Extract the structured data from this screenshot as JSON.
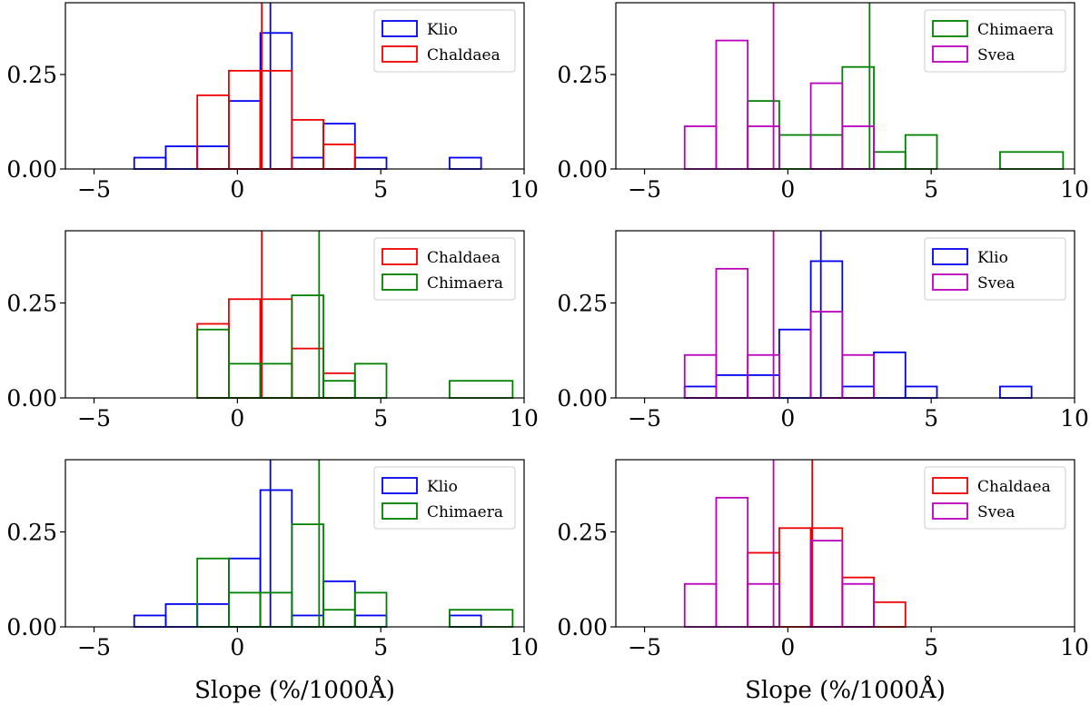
{
  "xlabel": "Slope (%/1000Å)",
  "colors": {
    "Klio": "#0000ee",
    "Chaldaea": "#ee0000",
    "Chimaera": "#008000",
    "Svea": "#bb00bb"
  },
  "hist": {
    "Klio": {
      "mean": 1.15,
      "edges": [
        -3.6,
        -2.5,
        -1.4,
        -0.3,
        0.8,
        1.9,
        3.0,
        4.1,
        5.2,
        6.3,
        7.4,
        8.5
      ],
      "values": [
        0.03,
        0.06,
        0.06,
        0.18,
        0.36,
        0.03,
        0.12,
        0.03,
        0.0,
        0.0,
        0.03
      ]
    },
    "Chaldaea": {
      "mean": 0.85,
      "edges": [
        -1.4,
        -0.3,
        0.8,
        1.9,
        3.0,
        4.1
      ],
      "values": [
        0.195,
        0.26,
        0.26,
        0.13,
        0.065
      ]
    },
    "Chimaera": {
      "mean": 2.85,
      "edges": [
        -1.4,
        -0.3,
        0.8,
        1.9,
        3.0,
        4.1,
        5.2,
        6.3,
        7.4,
        9.6
      ],
      "values": [
        0.18,
        0.09,
        0.09,
        0.27,
        0.045,
        0.09,
        0.0,
        0.0,
        0.045
      ]
    },
    "Svea": {
      "mean": -0.5,
      "edges": [
        -3.6,
        -2.5,
        -1.4,
        -0.3,
        0.8,
        1.9,
        3.0
      ],
      "values": [
        0.113,
        0.34,
        0.113,
        0.0,
        0.227,
        0.113
      ]
    }
  },
  "chart_data": [
    {
      "type": "bar",
      "subtype": "step-histogram",
      "series": [
        "Klio",
        "Chaldaea"
      ],
      "xlim": [
        -6,
        10
      ],
      "ylim": [
        0,
        0.44
      ],
      "xticks": [
        "−5",
        "0",
        "5",
        "10"
      ],
      "yticks": [
        "0.00",
        "0.25"
      ],
      "xlabel": "",
      "legend": "top-right"
    },
    {
      "type": "bar",
      "subtype": "step-histogram",
      "series": [
        "Chimaera",
        "Svea"
      ],
      "xlim": [
        -6,
        10
      ],
      "ylim": [
        0,
        0.44
      ],
      "xticks": [
        "−5",
        "0",
        "5",
        "10"
      ],
      "yticks": [
        "0.00",
        "0.25"
      ],
      "xlabel": "",
      "legend": "top-right"
    },
    {
      "type": "bar",
      "subtype": "step-histogram",
      "series": [
        "Chaldaea",
        "Chimaera"
      ],
      "xlim": [
        -6,
        10
      ],
      "ylim": [
        0,
        0.44
      ],
      "xticks": [
        "−5",
        "0",
        "5",
        "10"
      ],
      "yticks": [
        "0.00",
        "0.25"
      ],
      "xlabel": "",
      "legend": "top-right"
    },
    {
      "type": "bar",
      "subtype": "step-histogram",
      "series": [
        "Klio",
        "Svea"
      ],
      "xlim": [
        -6,
        10
      ],
      "ylim": [
        0,
        0.44
      ],
      "xticks": [
        "−5",
        "0",
        "5",
        "10"
      ],
      "yticks": [
        "0.00",
        "0.25"
      ],
      "xlabel": "",
      "legend": "top-right"
    },
    {
      "type": "bar",
      "subtype": "step-histogram",
      "series": [
        "Klio",
        "Chimaera"
      ],
      "xlim": [
        -6,
        10
      ],
      "ylim": [
        0,
        0.44
      ],
      "xticks": [
        "−5",
        "0",
        "5",
        "10"
      ],
      "yticks": [
        "0.00",
        "0.25"
      ],
      "xlabel": "Slope (%/1000Å)",
      "legend": "top-right"
    },
    {
      "type": "bar",
      "subtype": "step-histogram",
      "series": [
        "Chaldaea",
        "Svea"
      ],
      "xlim": [
        -6,
        10
      ],
      "ylim": [
        0,
        0.44
      ],
      "xticks": [
        "−5",
        "0",
        "5",
        "10"
      ],
      "yticks": [
        "0.00",
        "0.25"
      ],
      "xlabel": "Slope (%/1000Å)",
      "legend": "top-right"
    }
  ]
}
